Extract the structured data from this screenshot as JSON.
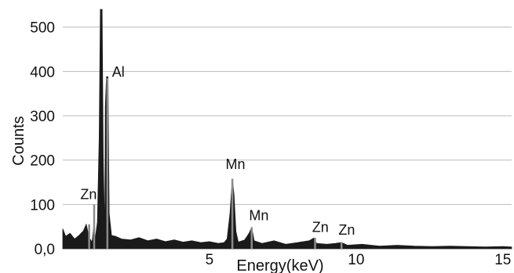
{
  "chart_data": {
    "type": "area",
    "title": "",
    "xlabel": "Energy(keV)",
    "ylabel": "Counts",
    "xlim": [
      0,
      15.3
    ],
    "ylim": [
      0,
      540
    ],
    "x_ticks": [
      5,
      10,
      15
    ],
    "y_ticks": [
      {
        "value": 0,
        "label": "0,0"
      },
      {
        "value": 100,
        "label": "100"
      },
      {
        "value": 200,
        "label": "200"
      },
      {
        "value": 300,
        "label": "300"
      },
      {
        "value": 400,
        "label": "400"
      },
      {
        "value": 500,
        "label": "500"
      }
    ],
    "grid": true,
    "colors": {
      "fill": "#1a1a1a",
      "grid": "#bbbbbb",
      "marker": "#8a8a8a"
    },
    "spectrum": [
      [
        0.0,
        45
      ],
      [
        0.1,
        28
      ],
      [
        0.25,
        35
      ],
      [
        0.4,
        22
      ],
      [
        0.55,
        30
      ],
      [
        0.7,
        40
      ],
      [
        0.8,
        55
      ],
      [
        0.9,
        25
      ],
      [
        1.0,
        15
      ],
      [
        1.04,
        40
      ],
      [
        1.07,
        62
      ],
      [
        1.1,
        20
      ],
      [
        1.18,
        60
      ],
      [
        1.24,
        250
      ],
      [
        1.28,
        552
      ],
      [
        1.34,
        552
      ],
      [
        1.38,
        200
      ],
      [
        1.43,
        30
      ],
      [
        1.45,
        320
      ],
      [
        1.49,
        388
      ],
      [
        1.54,
        388
      ],
      [
        1.58,
        80
      ],
      [
        1.66,
        30
      ],
      [
        1.8,
        28
      ],
      [
        2.0,
        22
      ],
      [
        2.3,
        20
      ],
      [
        2.6,
        25
      ],
      [
        2.9,
        18
      ],
      [
        3.2,
        22
      ],
      [
        3.5,
        16
      ],
      [
        3.8,
        20
      ],
      [
        4.1,
        15
      ],
      [
        4.4,
        18
      ],
      [
        4.7,
        14
      ],
      [
        5.0,
        16
      ],
      [
        5.3,
        12
      ],
      [
        5.5,
        14
      ],
      [
        5.6,
        22
      ],
      [
        5.7,
        80
      ],
      [
        5.78,
        158
      ],
      [
        5.84,
        120
      ],
      [
        5.9,
        40
      ],
      [
        5.98,
        15
      ],
      [
        6.2,
        20
      ],
      [
        6.35,
        35
      ],
      [
        6.44,
        48
      ],
      [
        6.52,
        18
      ],
      [
        6.8,
        12
      ],
      [
        7.2,
        18
      ],
      [
        7.6,
        10
      ],
      [
        8.0,
        14
      ],
      [
        8.4,
        18
      ],
      [
        8.55,
        24
      ],
      [
        8.65,
        12
      ],
      [
        9.0,
        10
      ],
      [
        9.3,
        12
      ],
      [
        9.5,
        14
      ],
      [
        9.7,
        8
      ],
      [
        10.2,
        10
      ],
      [
        10.8,
        6
      ],
      [
        11.4,
        8
      ],
      [
        12.0,
        6
      ],
      [
        12.6,
        5
      ],
      [
        13.2,
        6
      ],
      [
        13.8,
        5
      ],
      [
        14.4,
        4
      ],
      [
        15.0,
        5
      ],
      [
        15.3,
        4
      ]
    ],
    "markers": [
      {
        "x": 0.9,
        "y": 55
      },
      {
        "x": 1.07,
        "y": 100
      },
      {
        "x": 1.52,
        "y": 385
      },
      {
        "x": 5.78,
        "y": 158
      },
      {
        "x": 6.44,
        "y": 48
      },
      {
        "x": 8.6,
        "y": 25
      },
      {
        "x": 9.5,
        "y": 15
      }
    ],
    "annotations": [
      {
        "label": "Zn",
        "x": 0.6,
        "y": 112
      },
      {
        "label": "Al",
        "x": 1.68,
        "y": 388
      },
      {
        "label": "Mn",
        "x": 5.55,
        "y": 180
      },
      {
        "label": "Mn",
        "x": 6.35,
        "y": 64
      },
      {
        "label": "Zn",
        "x": 8.5,
        "y": 38
      },
      {
        "label": "Zn",
        "x": 9.4,
        "y": 32
      }
    ]
  }
}
